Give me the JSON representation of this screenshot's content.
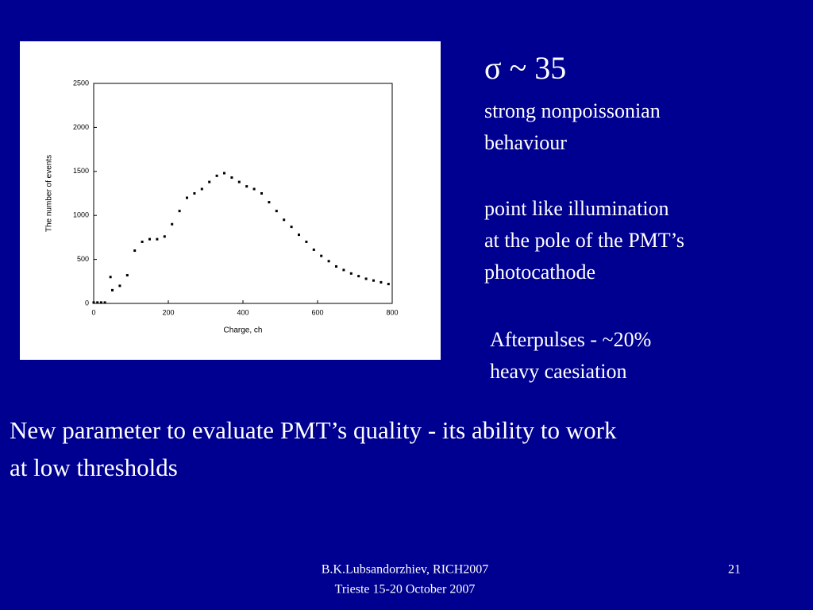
{
  "chart_data": {
    "type": "scatter",
    "x_label": "Charge, ch",
    "y_label": "The number of events",
    "x": [
      0,
      10,
      20,
      30,
      45,
      50,
      70,
      90,
      110,
      130,
      150,
      170,
      190,
      210,
      230,
      250,
      270,
      290,
      310,
      330,
      350,
      370,
      390,
      410,
      430,
      450,
      470,
      490,
      510,
      530,
      550,
      570,
      590,
      610,
      630,
      650,
      670,
      690,
      710,
      730,
      750,
      770,
      790
    ],
    "values": [
      10,
      10,
      10,
      10,
      300,
      150,
      200,
      320,
      600,
      700,
      730,
      730,
      760,
      900,
      1050,
      1200,
      1250,
      1300,
      1380,
      1450,
      1480,
      1430,
      1380,
      1330,
      1300,
      1250,
      1150,
      1050,
      950,
      870,
      780,
      700,
      610,
      540,
      480,
      420,
      380,
      340,
      310,
      280,
      260,
      240,
      220
    ],
    "color": "#000000",
    "xlim": [
      0,
      800
    ],
    "xticks": [
      0,
      200,
      400,
      600,
      800
    ],
    "ylim": [
      0,
      2500
    ],
    "yticks": [
      0,
      500,
      1000,
      1500,
      2000,
      2500
    ]
  },
  "slide": {
    "notes": [
      "σ ~ 35",
      "strong nonpoissonian",
      "behaviour",
      "point like illumination",
      "at the pole of the PMT’s",
      "photocathode",
      "Afterpulses - ~20%",
      "heavy caesiation"
    ],
    "main": [
      "New parameter to evaluate PMT’s quality - its ability to work",
      "at low thresholds"
    ],
    "footer": [
      "B.K.Lubsandorzhiev, RICH2007",
      "Trieste 15-20 October 2007"
    ],
    "page_number": "21"
  }
}
